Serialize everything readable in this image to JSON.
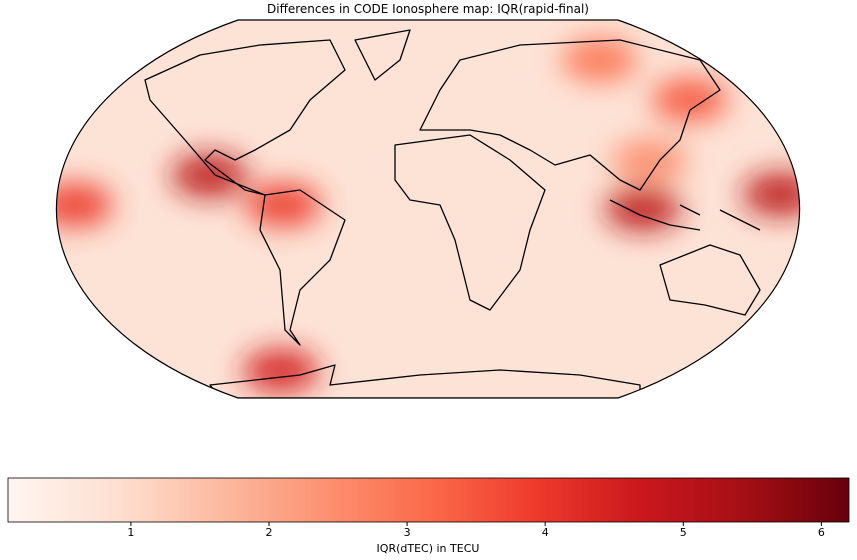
{
  "chart_data": {
    "type": "map",
    "title": "Differences in CODE Ionosphere map: IQR(rapid-final)",
    "colorbar_label": "IQR(dTEC) in TECU",
    "colormap": [
      "#fff5f0",
      "#fee0d2",
      "#fcbba1",
      "#fc9272",
      "#fb6a4a",
      "#ef3b2c",
      "#cb181d",
      "#a50f15",
      "#67000d"
    ],
    "clim": [
      0.11,
      6.2
    ],
    "cticks": [
      1,
      2,
      3,
      4,
      5,
      6
    ],
    "hotspots": [
      {
        "lon": -107,
        "lat": 16,
        "value": 5
      },
      {
        "lon": -70,
        "lat": 2,
        "value": 4
      },
      {
        "lon": -171,
        "lat": 2,
        "value": 4
      },
      {
        "lon": 104,
        "lat": 0,
        "value": 5
      },
      {
        "lon": 171,
        "lat": 7,
        "value": 5
      },
      {
        "lon": 113,
        "lat": 71,
        "value": 3
      },
      {
        "lon": -105,
        "lat": -77,
        "value": 4.5
      },
      {
        "lon": 146,
        "lat": 52,
        "value": 3.5
      },
      {
        "lon": 110,
        "lat": 23,
        "value": 2.5
      }
    ]
  }
}
